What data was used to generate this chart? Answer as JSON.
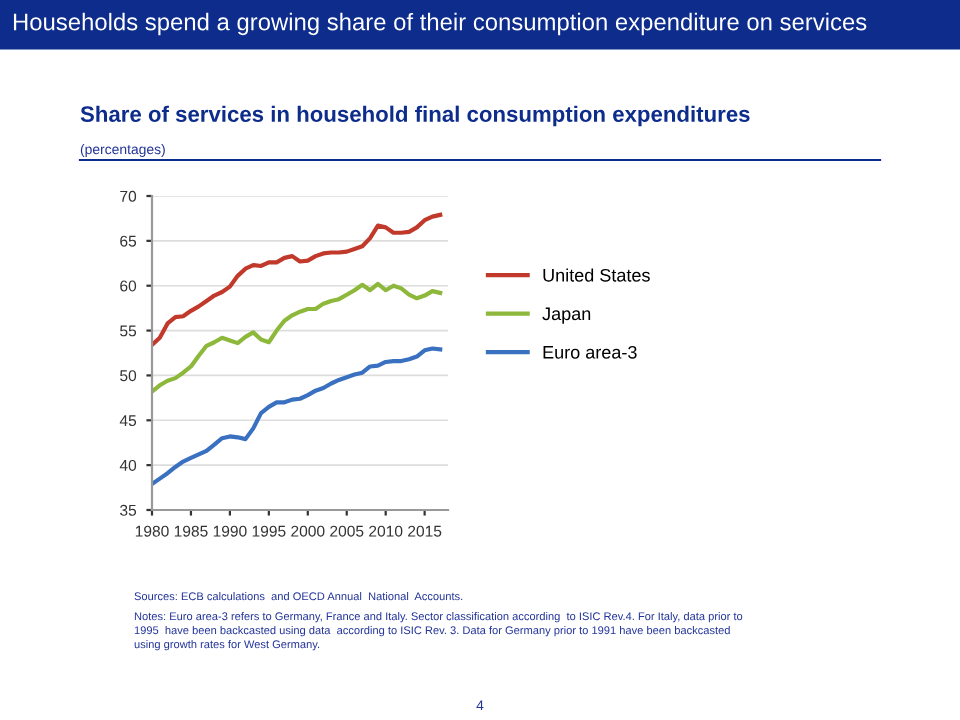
{
  "chart_data": {
    "type": "line",
    "title": "Households spend a growing share of their consumption expenditure on services",
    "subtitle": "Share of services in household final consumption expenditures",
    "annotations": [
      "(percentages)",
      "Sources: ECB calculations  and OECD Annual  National  Accounts.",
      "Notes: Euro area-3 refers to Germany, France and Italy. Sector classification according  to ISIC Rev.4. For Italy, data prior to",
      "1995  have been backcasted using data  according to ISIC Rev. 3. Data for Germany prior to 1991 have been backcasted",
      "using growth rates for West Germany.",
      "4"
    ],
    "x": [
      1980,
      1981,
      1982,
      1983,
      1984,
      1985,
      1986,
      1987,
      1988,
      1989,
      1990,
      1991,
      1992,
      1993,
      1994,
      1995,
      1996,
      1997,
      1998,
      1999,
      2000,
      2001,
      2002,
      2003,
      2004,
      2005,
      2006,
      2007,
      2008,
      2009,
      2010,
      2011,
      2012,
      2013,
      2014,
      2015,
      2016,
      2017
    ],
    "series": [
      {
        "name": "United States",
        "color": "#c0392b",
        "values": [
          53.4,
          54.2,
          55.8,
          56.5,
          56.6,
          57.2,
          57.7,
          58.3,
          58.9,
          59.3,
          59.9,
          61.1,
          61.9,
          62.3,
          62.2,
          62.6,
          62.6,
          63.1,
          63.3,
          62.7,
          62.8,
          63.3,
          63.6,
          63.7,
          63.7,
          63.8,
          64.1,
          64.4,
          65.3,
          66.7,
          66.5,
          65.9,
          65.9,
          66.0,
          66.5,
          67.3,
          67.7,
          67.9
        ]
      },
      {
        "name": "Japan",
        "color": "#8db83b",
        "values": [
          48.2,
          48.9,
          49.4,
          49.7,
          50.3,
          51.0,
          52.2,
          53.3,
          53.7,
          54.2,
          53.9,
          53.6,
          54.3,
          54.8,
          54.0,
          53.7,
          55.0,
          56.1,
          56.7,
          57.1,
          57.4,
          57.4,
          58.0,
          58.3,
          58.5,
          59.0,
          59.5,
          60.1,
          59.5,
          60.2,
          59.5,
          60.0,
          59.7,
          59.0,
          58.6,
          58.9,
          59.4,
          59.2
        ]
      },
      {
        "name": "Euro area-3",
        "color": "#3a70c0",
        "values": [
          37.9,
          38.5,
          39.1,
          39.8,
          40.4,
          40.8,
          41.2,
          41.6,
          42.3,
          43.0,
          43.2,
          43.1,
          42.9,
          44.1,
          45.8,
          46.5,
          47.0,
          47.0,
          47.3,
          47.4,
          47.8,
          48.3,
          48.6,
          49.1,
          49.5,
          49.8,
          50.1,
          50.3,
          51.0,
          51.1,
          51.5,
          51.6,
          51.6,
          51.8,
          52.1,
          52.8,
          53.0,
          52.9
        ]
      }
    ],
    "xlim": [
      1980,
      2018
    ],
    "xticks": [
      1980,
      1985,
      1990,
      1995,
      2000,
      2005,
      2010,
      2015
    ],
    "ylim": [
      35,
      70
    ],
    "yticks": [
      35,
      40,
      45,
      50,
      55,
      60,
      65,
      70
    ],
    "grid": "y",
    "legend": "right",
    "marker": "none",
    "line_style": "solid"
  }
}
